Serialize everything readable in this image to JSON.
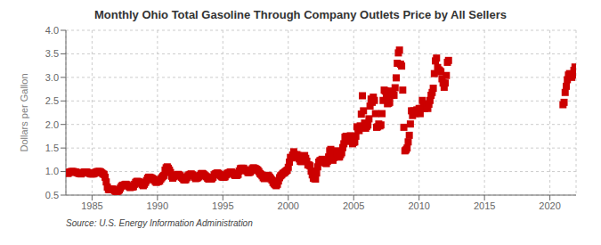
{
  "chart_data": {
    "type": "scatter",
    "title": "Monthly Ohio Total Gasoline Through Company Outlets Price by All Sellers",
    "ylabel": "Dollars per Gallon",
    "annotation": "Source: U.S. Energy Information Administration",
    "color": "#cc0000",
    "marker": "square",
    "grid": true,
    "xlim": [
      1983,
      2022
    ],
    "ylim": [
      0.5,
      4.0
    ],
    "xticks": [
      1985,
      1990,
      1995,
      2000,
      2005,
      2010,
      2015,
      2020
    ],
    "yticks": [
      0.5,
      {
        "value": 1.0,
        "label": "1.0"
      },
      1.5,
      {
        "value": 2.0,
        "label": "2.0"
      },
      2.5,
      {
        "value": 3.0,
        "label": "3.0"
      },
      3.5,
      {
        "value": 4.0,
        "label": "4.0"
      }
    ],
    "x": [
      1983,
      1983.0833333333333,
      1983.1666666666667,
      1983.25,
      1983.3333333333333,
      1983.4166666666667,
      1983.5,
      1983.5833333333333,
      1983.6666666666667,
      1983.75,
      1983.8333333333333,
      1983.9166666666667,
      1984,
      1984.0833333333333,
      1984.1666666666667,
      1984.25,
      1984.3333333333333,
      1984.4166666666667,
      1984.5,
      1984.5833333333333,
      1984.6666666666667,
      1984.75,
      1984.8333333333333,
      1984.9166666666667,
      1985,
      1985.0833333333333,
      1985.1666666666667,
      1985.25,
      1985.3333333333333,
      1985.4166666666667,
      1985.5,
      1985.5833333333333,
      1985.6666666666667,
      1985.75,
      1985.8333333333333,
      1985.9166666666667,
      1986,
      1986.0833333333333,
      1986.1666666666667,
      1986.25,
      1986.3333333333333,
      1986.4166666666667,
      1986.5,
      1986.5833333333333,
      1986.6666666666667,
      1986.75,
      1986.8333333333333,
      1986.9166666666667,
      1987,
      1987.0833333333333,
      1987.1666666666667,
      1987.25,
      1987.3333333333333,
      1987.4166666666667,
      1987.5,
      1987.5833333333333,
      1987.6666666666667,
      1987.75,
      1987.8333333333333,
      1987.9166666666667,
      1988,
      1988.0833333333333,
      1988.1666666666667,
      1988.25,
      1988.3333333333333,
      1988.4166666666667,
      1988.5,
      1988.5833333333333,
      1988.6666666666667,
      1988.75,
      1988.8333333333333,
      1988.9166666666667,
      1989,
      1989.0833333333333,
      1989.1666666666667,
      1989.25,
      1989.3333333333333,
      1989.4166666666667,
      1989.5,
      1989.5833333333333,
      1989.6666666666667,
      1989.75,
      1989.8333333333333,
      1989.9166666666667,
      1990,
      1990.0833333333333,
      1990.1666666666667,
      1990.25,
      1990.3333333333333,
      1990.4166666666667,
      1990.5,
      1990.5833333333333,
      1990.6666666666667,
      1990.75,
      1990.8333333333333,
      1990.9166666666667,
      1991,
      1991.0833333333333,
      1991.1666666666667,
      1991.25,
      1991.3333333333333,
      1991.4166666666667,
      1991.5,
      1991.5833333333333,
      1991.6666666666667,
      1991.75,
      1991.8333333333333,
      1991.9166666666667,
      1992,
      1992.0833333333333,
      1992.1666666666667,
      1992.25,
      1992.3333333333333,
      1992.4166666666667,
      1992.5,
      1992.5833333333333,
      1992.6666666666667,
      1992.75,
      1992.8333333333333,
      1992.9166666666667,
      1993,
      1993.0833333333333,
      1993.1666666666667,
      1993.25,
      1993.3333333333333,
      1993.4166666666667,
      1993.5,
      1993.5833333333333,
      1993.6666666666667,
      1993.75,
      1993.8333333333333,
      1993.9166666666667,
      1994,
      1994.0833333333333,
      1994.1666666666667,
      1994.25,
      1994.3333333333333,
      1994.4166666666667,
      1994.5,
      1994.5833333333333,
      1994.6666666666667,
      1994.75,
      1994.8333333333333,
      1994.9166666666667,
      1995,
      1995.0833333333333,
      1995.1666666666667,
      1995.25,
      1995.3333333333333,
      1995.4166666666667,
      1995.5,
      1995.5833333333333,
      1995.6666666666667,
      1995.75,
      1995.8333333333333,
      1995.9166666666667,
      1996,
      1996.0833333333333,
      1996.1666666666667,
      1996.25,
      1996.3333333333333,
      1996.4166666666667,
      1996.5,
      1996.5833333333333,
      1996.6666666666667,
      1996.75,
      1996.8333333333333,
      1996.9166666666667,
      1997,
      1997.0833333333333,
      1997.1666666666667,
      1997.25,
      1997.3333333333333,
      1997.4166666666667,
      1997.5,
      1997.5833333333333,
      1997.6666666666667,
      1997.75,
      1997.8333333333333,
      1997.9166666666667,
      1998,
      1998.0833333333333,
      1998.1666666666667,
      1998.25,
      1998.3333333333333,
      1998.4166666666667,
      1998.5,
      1998.5833333333333,
      1998.6666666666667,
      1998.75,
      1998.8333333333333,
      1998.9166666666667,
      1999,
      1999.0833333333333,
      1999.1666666666667,
      1999.25,
      1999.3333333333333,
      1999.4166666666667,
      1999.5,
      1999.5833333333333,
      1999.6666666666667,
      1999.75,
      1999.8333333333333,
      1999.9166666666667,
      2000,
      2000.0833333333333,
      2000.1666666666667,
      2000.25,
      2000.3333333333333,
      2000.4166666666667,
      2000.5,
      2000.5833333333333,
      2000.6666666666667,
      2000.75,
      2000.8333333333333,
      2000.9166666666667,
      2001,
      2001.0833333333333,
      2001.1666666666667,
      2001.25,
      2001.3333333333333,
      2001.4166666666667,
      2001.5,
      2001.5833333333333,
      2001.6666666666667,
      2001.75,
      2001.8333333333333,
      2001.9166666666667,
      2002,
      2002.0833333333333,
      2002.1666666666667,
      2002.25,
      2002.3333333333333,
      2002.4166666666667,
      2002.5,
      2002.5833333333333,
      2002.6666666666667,
      2002.75,
      2002.8333333333333,
      2002.9166666666667,
      2003,
      2003.0833333333333,
      2003.1666666666667,
      2003.25,
      2003.3333333333333,
      2003.4166666666667,
      2003.5,
      2003.5833333333333,
      2003.6666666666667,
      2003.75,
      2003.8333333333333,
      2003.9166666666667,
      2004,
      2004.0833333333333,
      2004.1666666666667,
      2004.25,
      2004.3333333333333,
      2004.4166666666667,
      2004.5,
      2004.5833333333333,
      2004.6666666666667,
      2004.75,
      2004.8333333333333,
      2004.9166666666667,
      2005,
      2005.0833333333333,
      2005.1666666666667,
      2005.25,
      2005.3333333333333,
      2005.4166666666667,
      2005.5,
      2005.5833333333333,
      2005.6666666666667,
      2005.75,
      2005.8333333333333,
      2005.9166666666667,
      2006,
      2006.0833333333333,
      2006.1666666666667,
      2006.25,
      2006.3333333333333,
      2006.4166666666667,
      2006.5,
      2006.5833333333333,
      2006.6666666666667,
      2006.75,
      2006.8333333333333,
      2006.9166666666667,
      2007,
      2007.0833333333333,
      2007.1666666666667,
      2007.25,
      2007.3333333333333,
      2007.4166666666667,
      2007.5,
      2007.5833333333333,
      2007.6666666666667,
      2007.75,
      2007.8333333333333,
      2007.9166666666667,
      2008,
      2008.0833333333333,
      2008.1666666666667,
      2008.25,
      2008.3333333333333,
      2008.4166666666667,
      2008.5,
      2008.5833333333333,
      2008.6666666666667,
      2008.75,
      2008.8333333333333,
      2008.9166666666667,
      2009,
      2009.0833333333333,
      2009.1666666666667,
      2009.25,
      2009.3333333333333,
      2009.4166666666667,
      2009.5,
      2009.5833333333333,
      2009.6666666666667,
      2009.75,
      2009.8333333333333,
      2009.9166666666667,
      2010,
      2010.0833333333333,
      2010.1666666666667,
      2010.25,
      2010.3333333333333,
      2010.4166666666667,
      2010.5,
      2010.5833333333333,
      2010.6666666666667,
      2010.75,
      2010.8333333333333,
      2010.9166666666667,
      2011,
      2011.0833333333333,
      2011.1666666666667,
      2011.25,
      2011.3333333333333,
      2011.4166666666667,
      2011.5,
      2011.5833333333333,
      2011.6666666666667,
      2011.75,
      2011.8333333333333,
      2011.9166666666667,
      2012,
      2012.0833333333333,
      2012.1666666666667,
      2012.25,
      2021,
      2021.0833333333333,
      2021.1666666666667,
      2021.25,
      2021.3333333333333,
      2021.4166666666667,
      2021.5,
      2021.5833333333333,
      2021.6666666666667,
      2021.75,
      2021.8333333333333,
      2021.9166666666667
    ],
    "values": [
      0.98,
      0.97,
      0.96,
      0.98,
      0.99,
      1.0,
      1.0,
      1.0,
      0.99,
      0.99,
      0.98,
      0.97,
      0.96,
      0.96,
      0.95,
      0.97,
      0.98,
      0.99,
      0.99,
      0.99,
      0.98,
      0.97,
      0.96,
      0.95,
      0.95,
      0.95,
      0.96,
      0.98,
      0.99,
      1.0,
      1.0,
      1.0,
      0.99,
      0.97,
      0.95,
      0.94,
      0.88,
      0.78,
      0.67,
      0.62,
      0.62,
      0.62,
      0.62,
      0.63,
      0.61,
      0.59,
      0.57,
      0.56,
      0.59,
      0.61,
      0.65,
      0.69,
      0.71,
      0.71,
      0.72,
      0.73,
      0.72,
      0.7,
      0.68,
      0.66,
      0.67,
      0.67,
      0.68,
      0.73,
      0.77,
      0.79,
      0.79,
      0.78,
      0.77,
      0.75,
      0.72,
      0.7,
      0.73,
      0.77,
      0.81,
      0.86,
      0.88,
      0.88,
      0.87,
      0.86,
      0.84,
      0.82,
      0.79,
      0.77,
      0.79,
      0.79,
      0.8,
      0.84,
      0.87,
      0.9,
      0.92,
      1.03,
      1.08,
      1.1,
      1.07,
      1.03,
      0.98,
      0.9,
      0.86,
      0.89,
      0.91,
      0.92,
      0.93,
      0.94,
      0.93,
      0.91,
      0.88,
      0.86,
      0.83,
      0.82,
      0.83,
      0.87,
      0.91,
      0.93,
      0.94,
      0.95,
      0.93,
      0.91,
      0.88,
      0.85,
      0.86,
      0.87,
      0.89,
      0.92,
      0.95,
      0.96,
      0.95,
      0.93,
      0.91,
      0.89,
      0.86,
      0.84,
      0.84,
      0.84,
      0.85,
      0.88,
      0.93,
      0.95,
      0.96,
      0.97,
      0.96,
      0.94,
      0.91,
      0.89,
      0.88,
      0.88,
      0.89,
      0.93,
      0.96,
      0.97,
      0.98,
      0.99,
      0.99,
      0.97,
      0.94,
      0.92,
      0.92,
      0.92,
      0.94,
      1.01,
      1.06,
      1.07,
      1.07,
      1.07,
      1.04,
      1.03,
      1.01,
      0.98,
      0.98,
      0.99,
      1.02,
      1.06,
      1.08,
      1.07,
      1.06,
      1.05,
      1.03,
      1.0,
      0.96,
      0.94,
      0.91,
      0.87,
      0.85,
      0.87,
      0.91,
      0.92,
      0.91,
      0.88,
      0.85,
      0.82,
      0.77,
      0.74,
      0.72,
      0.7,
      0.73,
      0.8,
      0.87,
      0.91,
      0.93,
      0.96,
      0.97,
      0.99,
      1.01,
      1.03,
      1.09,
      1.2,
      1.3,
      1.29,
      1.35,
      1.42,
      1.36,
      1.3,
      1.36,
      1.34,
      1.27,
      1.22,
      1.21,
      1.25,
      1.32,
      1.34,
      1.28,
      1.22,
      1.14,
      1.14,
      1.12,
      1.01,
      0.93,
      0.86,
      0.85,
      0.84,
      0.97,
      1.1,
      1.2,
      1.23,
      1.24,
      1.26,
      1.23,
      1.21,
      1.18,
      1.17,
      1.22,
      1.31,
      1.44,
      1.47,
      1.32,
      1.24,
      1.3,
      1.37,
      1.44,
      1.38,
      1.31,
      1.31,
      1.36,
      1.4,
      1.51,
      1.59,
      1.73,
      1.75,
      1.69,
      1.68,
      1.64,
      1.76,
      1.74,
      1.59,
      1.62,
      1.63,
      1.75,
      1.95,
      1.9,
      1.87,
      1.97,
      2.22,
      2.61,
      2.29,
      2.03,
      1.92,
      1.96,
      1.99,
      2.12,
      2.39,
      2.54,
      2.47,
      2.58,
      2.51,
      2.23,
      1.94,
      1.95,
      2.01,
      1.97,
      1.99,
      2.23,
      2.51,
      2.73,
      2.71,
      2.6,
      2.44,
      2.45,
      2.47,
      2.71,
      2.62,
      2.66,
      2.62,
      2.78,
      2.99,
      3.3,
      3.52,
      3.58,
      3.28,
      3.24,
      2.73,
      1.94,
      1.44,
      1.46,
      1.5,
      1.63,
      1.77,
      2.01,
      2.29,
      2.19,
      2.29,
      2.23,
      2.24,
      2.31,
      2.29,
      2.34,
      2.23,
      2.34,
      2.51,
      2.44,
      2.34,
      2.38,
      2.38,
      2.34,
      2.43,
      2.51,
      2.62,
      2.68,
      2.77,
      3.08,
      3.35,
      3.41,
      3.21,
      3.16,
      3.14,
      3.12,
      2.97,
      2.88,
      2.79,
      2.88,
      3.04,
      3.32,
      3.36,
      2.42,
      2.47,
      2.68,
      2.81,
      2.95,
      3.05,
      3.08,
      3.05,
      3.0,
      3.05,
      3.15,
      3.22
    ]
  }
}
